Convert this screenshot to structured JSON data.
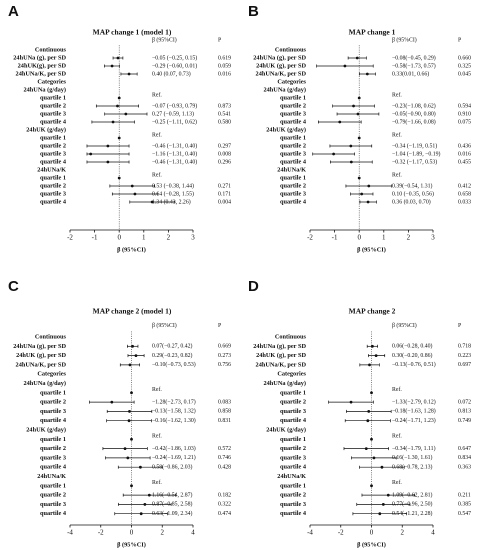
{
  "chart_data": [
    {
      "type": "forest",
      "panel": "A",
      "title": "MAP change 1 (model 1)",
      "col_beta": "β (95%CI)",
      "col_p": "P",
      "xlabel": "β (95%CI)",
      "xlim": [
        -2,
        3
      ],
      "xticks": [
        -2,
        -1,
        0,
        1,
        2,
        3
      ],
      "rows": [
        {
          "label": "Continuous"
        },
        {
          "label": "24hUNa (g), per SD",
          "estimate": -0.05,
          "ci": [
            -0.25,
            0.15
          ],
          "text": "−0.05 (−0.25, 0.15)",
          "p": "0.619"
        },
        {
          "label": "24hUK(g), per SD",
          "estimate": -0.29,
          "ci": [
            -0.6,
            0.01
          ],
          "text": "−0.29 (−0.60, 0.01)",
          "p": "0.059"
        },
        {
          "label": "24hUNa/K, per SD",
          "estimate": 0.4,
          "ci": [
            0.07,
            0.73
          ],
          "text": "0.40 (0.07, 0.73)",
          "p": "0.016"
        },
        {
          "label": "Categories"
        },
        {
          "label": "24hUNa (g/day)"
        },
        {
          "label": "quartile 1",
          "estimate": 0,
          "text": "Ref."
        },
        {
          "label": "quartile 2",
          "estimate": -0.07,
          "ci": [
            -0.93,
            0.79
          ],
          "text": "−0.07 (−0.93, 0.79)",
          "p": "0.873"
        },
        {
          "label": "quartile 3",
          "estimate": 0.27,
          "ci": [
            -0.59,
            1.13
          ],
          "text": "0.27 (−0.59, 1.13)",
          "p": "0.541"
        },
        {
          "label": "quartile 4",
          "estimate": -0.25,
          "ci": [
            -1.11,
            0.62
          ],
          "text": "−0.25 (−1.11, 0.62)",
          "p": "0.580"
        },
        {
          "label": "24hUK (g/day)"
        },
        {
          "label": "quartile 1",
          "estimate": 0,
          "text": "Ref."
        },
        {
          "label": "quartile 2",
          "estimate": -0.46,
          "ci": [
            -1.31,
            0.4
          ],
          "text": "−0.46 (−1.31, 0.40)",
          "p": "0.297"
        },
        {
          "label": "quartile 3",
          "estimate": -1.16,
          "ci": [
            -1.31,
            0.4
          ],
          "text": "−1.16 (−1.31, 0.40)",
          "p": "0.008"
        },
        {
          "label": "quartile 4",
          "estimate": -0.46,
          "ci": [
            -1.31,
            0.4
          ],
          "text": "−0.46 (−1.31, 0.40)",
          "p": "0.296"
        },
        {
          "label": "24hUNa/K"
        },
        {
          "label": "quartile 1",
          "estimate": 0,
          "text": "Ref."
        },
        {
          "label": "quartile 2",
          "estimate": 0.53,
          "ci": [
            -0.38,
            1.44
          ],
          "text": "0.53 (−0.38, 1.44)",
          "p": "0.271"
        },
        {
          "label": "quartile 3",
          "estimate": 0.64,
          "ci": [
            -0.28,
            1.55
          ],
          "text": "0.64 (−0.28, 1.55)",
          "p": "0.171"
        },
        {
          "label": "quartile 4",
          "estimate": 1.34,
          "ci": [
            0.43,
            2.26
          ],
          "text": "1.34 (0.43, 2.26)",
          "p": "0.004"
        }
      ]
    },
    {
      "type": "forest",
      "panel": "B",
      "title": "MAP change 1",
      "col_beta": "β (95%CI)",
      "col_p": "P",
      "xlabel": "β (95%CI)",
      "xlim": [
        -2,
        3
      ],
      "xticks": [
        -2,
        -1,
        0,
        1,
        2,
        3
      ],
      "rows": [
        {
          "label": "Continuous"
        },
        {
          "label": "24hUNa (g), per SD",
          "estimate": -0.08,
          "ci": [
            -0.45,
            0.29
          ],
          "text": "−0.08(−0.45, 0.29)",
          "p": "0.660"
        },
        {
          "label": "24hUK (g), per SD",
          "estimate": -0.58,
          "ci": [
            -1.73,
            0.57
          ],
          "text": "−0.58(−1.73, 0.57)",
          "p": "0.325"
        },
        {
          "label": "24hUNa/K, per SD",
          "estimate": 0.33,
          "ci": [
            0.01,
            0.66
          ],
          "text": "0.33(0.01, 0.66)",
          "p": "0.045"
        },
        {
          "label": "Categories"
        },
        {
          "label": "24hUNa (g/day)"
        },
        {
          "label": "quartile 1",
          "estimate": 0,
          "text": "Ref."
        },
        {
          "label": "quartile 2",
          "estimate": -0.23,
          "ci": [
            -1.08,
            0.62
          ],
          "text": "−0.23(−1.08, 0.62)",
          "p": "0.594"
        },
        {
          "label": "quartile 3",
          "estimate": -0.05,
          "ci": [
            -0.9,
            0.8
          ],
          "text": "−0.05(−0.90, 0.80)",
          "p": "0.910"
        },
        {
          "label": "quartile 4",
          "estimate": -0.79,
          "ci": [
            -1.66,
            0.08
          ],
          "text": "−0.79(−1.66, 0.08)",
          "p": "0.075"
        },
        {
          "label": "24hUK (g/day)"
        },
        {
          "label": "quartile 1",
          "estimate": 0,
          "text": "Ref."
        },
        {
          "label": "quartile 2",
          "estimate": -0.34,
          "ci": [
            -1.19,
            0.51
          ],
          "text": "−0.34 (−1.19, 0.51)",
          "p": "0.436"
        },
        {
          "label": "quartile 3",
          "estimate": -1.04,
          "ci": [
            -1.89,
            -0.19
          ],
          "text": "−1.04 (−1.89, −0.19)",
          "p": "0.016"
        },
        {
          "label": "quartile 4",
          "estimate": -0.32,
          "ci": [
            -1.17,
            0.53
          ],
          "text": "−0.32 (−1.17, 0.53)",
          "p": "0.455"
        },
        {
          "label": "24hUNa/K"
        },
        {
          "label": "quartile 1",
          "estimate": 0,
          "text": "Ref."
        },
        {
          "label": "quartile 2",
          "estimate": 0.39,
          "ci": [
            -0.54,
            1.31
          ],
          "text": "0.39(−0.54, 1.31)",
          "p": "0.412"
        },
        {
          "label": "quartile 3",
          "estimate": 0.1,
          "ci": [
            -0.35,
            0.56
          ],
          "text": "0.10 (−0.35, 0.56)",
          "p": "0.658"
        },
        {
          "label": "quartile 4",
          "estimate": 0.36,
          "ci": [
            0.03,
            0.7
          ],
          "text": "0.36 (0.03, 0.70)",
          "p": "0.033"
        }
      ]
    },
    {
      "type": "forest",
      "panel": "C",
      "title": "MAP change 2 (model 1)",
      "col_beta": "β (95%CI)",
      "col_p": "P",
      "xlabel": "β (95%CI)",
      "xlim": [
        -4,
        4
      ],
      "xticks": [
        -4,
        -2,
        0,
        2,
        4
      ],
      "rows": [
        {
          "label": "Continuous"
        },
        {
          "label": "24hUNa (g), per SD",
          "estimate": 0.07,
          "ci": [
            -0.27,
            0.42
          ],
          "text": "0.07(−0.27, 0.42)",
          "p": "0.669"
        },
        {
          "label": "24hUK (g), per SD",
          "estimate": 0.29,
          "ci": [
            -0.23,
            0.82
          ],
          "text": "0.29(−0.23, 0.82)",
          "p": "0.273"
        },
        {
          "label": "24hUNa/K, per SD",
          "estimate": -0.1,
          "ci": [
            -0.73,
            0.53
          ],
          "text": "−0.10(−0.73, 0.53)",
          "p": "0.756"
        },
        {
          "label": "Categories"
        },
        {
          "label": "24hUNa (g/day)"
        },
        {
          "label": "quartile 1",
          "estimate": 0,
          "text": "Ref."
        },
        {
          "label": "quartile 2",
          "estimate": -1.28,
          "ci": [
            -2.73,
            0.17
          ],
          "text": "−1.28(−2.73, 0.17)",
          "p": "0.083"
        },
        {
          "label": "quartile 3",
          "estimate": -0.13,
          "ci": [
            -1.58,
            1.32
          ],
          "text": "−0.13(−1.58, 1.32)",
          "p": "0.858"
        },
        {
          "label": "quartile 4",
          "estimate": -0.16,
          "ci": [
            -1.62,
            1.3
          ],
          "text": "−0.16(−1.62, 1.30)",
          "p": "0.831"
        },
        {
          "label": "24hUK (g/day)"
        },
        {
          "label": "quartile 1",
          "estimate": 0,
          "text": "Ref."
        },
        {
          "label": "quartile 2",
          "estimate": -0.42,
          "ci": [
            -1.86,
            1.03
          ],
          "text": "−0.42(−1.86, 1.03)",
          "p": "0.572"
        },
        {
          "label": "quartile 3",
          "estimate": -0.24,
          "ci": [
            -1.69,
            1.21
          ],
          "text": "−0.24(−1.69, 1.21)",
          "p": "0.746"
        },
        {
          "label": "quartile 4",
          "estimate": 0.58,
          "ci": [
            -0.86,
            2.03
          ],
          "text": "0.58(−0.86, 2.03)",
          "p": "0.428"
        },
        {
          "label": "24hUNa/K"
        },
        {
          "label": "quartile 1",
          "estimate": 0,
          "text": "Ref."
        },
        {
          "label": "quartile 2",
          "estimate": 1.16,
          "ci": [
            -0.54,
            2.87
          ],
          "text": "1.16(−0.54, 2.87)",
          "p": "0.182"
        },
        {
          "label": "quartile 3",
          "estimate": 0.87,
          "ci": [
            -0.85,
            2.58
          ],
          "text": "0.87(−0.85, 2.58)",
          "p": "0.322"
        },
        {
          "label": "quartile 4",
          "estimate": 0.63,
          "ci": [
            -1.09,
            2.34
          ],
          "text": "0.63(−1.09, 2.34)",
          "p": "0.474"
        }
      ]
    },
    {
      "type": "forest",
      "panel": "D",
      "title": "MAP change 2",
      "col_beta": "β (95%CI)",
      "col_p": "P",
      "xlabel": "β (95%CI)",
      "xlim": [
        -4,
        4
      ],
      "xticks": [
        -4,
        -2,
        0,
        2,
        4
      ],
      "rows": [
        {
          "label": "Continuous"
        },
        {
          "label": "24hUNa (g), per SD",
          "estimate": 0.06,
          "ci": [
            -0.28,
            0.4
          ],
          "text": "0.06(−0.28, 0.40)",
          "p": "0.718"
        },
        {
          "label": "24hUK (g), per SD",
          "estimate": 0.3,
          "ci": [
            -0.2,
            0.86
          ],
          "text": "0.30(−0.20, 0.86)",
          "p": "0.223"
        },
        {
          "label": "24hUNa/K, per SD",
          "estimate": -0.13,
          "ci": [
            -0.76,
            0.51
          ],
          "text": "−0.13(−0.76, 0.51)",
          "p": "0.697"
        },
        {
          "label": "Categories"
        },
        {
          "label": "24hUNa (g/day)"
        },
        {
          "label": "quartile 1",
          "estimate": 0,
          "text": "Ref."
        },
        {
          "label": "quartile 2",
          "estimate": -1.33,
          "ci": [
            -2.79,
            0.12
          ],
          "text": "−1.33(−2.79, 0.12)",
          "p": "0.072"
        },
        {
          "label": "quartile 3",
          "estimate": -0.18,
          "ci": [
            -1.63,
            1.28
          ],
          "text": "−0.18(−1.63, 1.28)",
          "p": "0.813"
        },
        {
          "label": "quartile 4",
          "estimate": -0.24,
          "ci": [
            -1.71,
            1.23
          ],
          "text": "−0.24(−1.71, 1.23)",
          "p": "0.749"
        },
        {
          "label": "24hUK (g/day)"
        },
        {
          "label": "quartile 1",
          "estimate": 0,
          "text": "Ref."
        },
        {
          "label": "quartile 2",
          "estimate": -0.34,
          "ci": [
            -1.79,
            1.11
          ],
          "text": "−0.34(−1.79, 1.11)",
          "p": "0.647"
        },
        {
          "label": "quartile 3",
          "estimate": 0.16,
          "ci": [
            -1.3,
            1.61
          ],
          "text": "0.16(−1.30, 1.61)",
          "p": "0.834"
        },
        {
          "label": "quartile 4",
          "estimate": 0.68,
          "ci": [
            -0.78,
            2.13
          ],
          "text": "0.68(−0.78, 2.13)",
          "p": "0.363"
        },
        {
          "label": "24hUNa/K"
        },
        {
          "label": "quartile 1",
          "estimate": 0,
          "text": "Ref."
        },
        {
          "label": "quartile 2",
          "estimate": 1.09,
          "ci": [
            -0.62,
            2.81
          ],
          "text": "1.09(−0.62, 2.81)",
          "p": "0.211"
        },
        {
          "label": "quartile 3",
          "estimate": 0.77,
          "ci": [
            -0.96,
            2.5
          ],
          "text": "0.77(−0.96, 2.50)",
          "p": "0.385"
        },
        {
          "label": "quartile 4",
          "estimate": 0.54,
          "ci": [
            -1.21,
            2.28
          ],
          "text": "0.54(−1.21, 2.28)",
          "p": "0.547"
        }
      ]
    }
  ]
}
